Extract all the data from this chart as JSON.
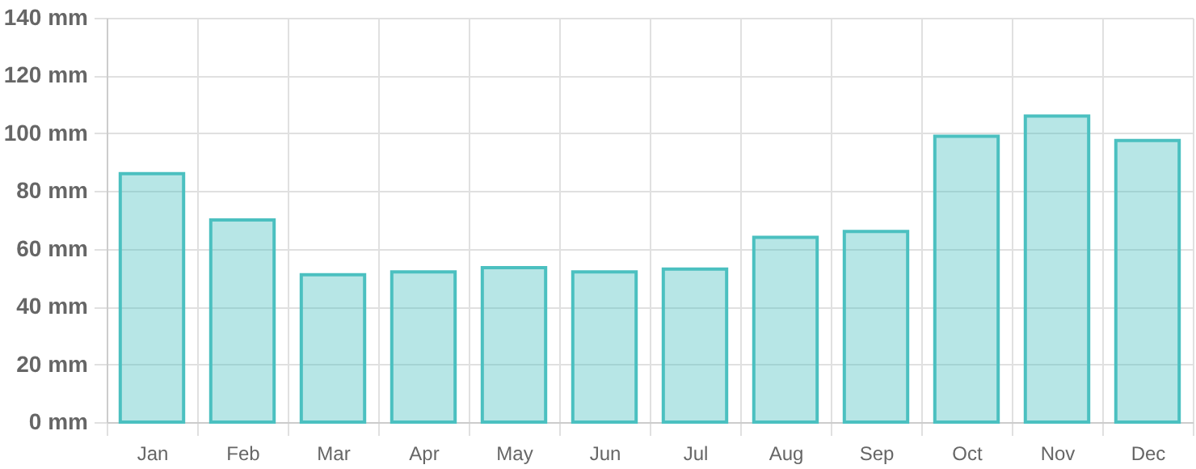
{
  "chart_data": {
    "type": "bar",
    "categories": [
      "Jan",
      "Feb",
      "Mar",
      "Apr",
      "May",
      "Jun",
      "Jul",
      "Aug",
      "Sep",
      "Oct",
      "Nov",
      "Dec"
    ],
    "values": [
      86,
      70,
      51,
      52,
      53.5,
      52,
      53,
      64,
      66,
      99,
      106,
      97.5
    ],
    "color": "#4bc0c0",
    "ylim": [
      0,
      140
    ],
    "yticks": [
      {
        "value": 0,
        "label": "0 mm"
      },
      {
        "value": 20,
        "label": "20 mm"
      },
      {
        "value": 40,
        "label": "40 mm"
      },
      {
        "value": 60,
        "label": "60 mm"
      },
      {
        "value": 80,
        "label": "80 mm"
      },
      {
        "value": 100,
        "label": "100 mm"
      },
      {
        "value": 120,
        "label": "120 mm"
      },
      {
        "value": 140,
        "label": "140 mm"
      }
    ],
    "grid": true
  }
}
